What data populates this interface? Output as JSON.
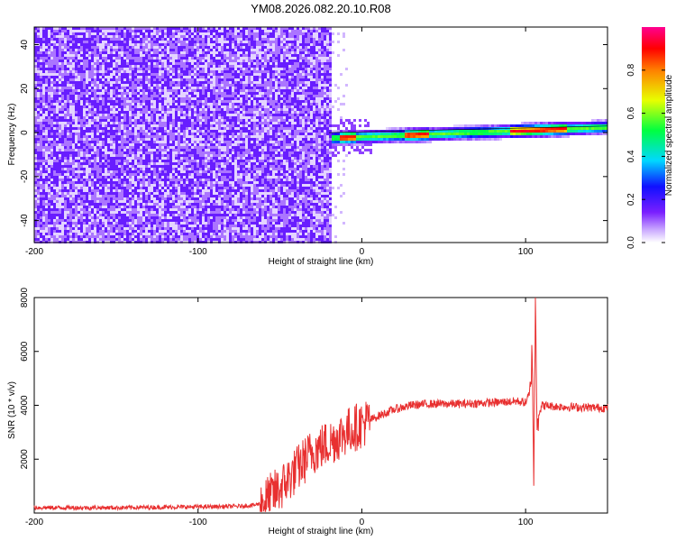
{
  "title": "YM08.2026.082.20.10.R08",
  "chart_data": [
    {
      "type": "heatmap",
      "xlabel": "Height of straight line (km)",
      "ylabel": "Frequency (Hz)",
      "xlim": [
        -200,
        150
      ],
      "ylim": [
        -50,
        48
      ],
      "x_ticks": [
        -200,
        -100,
        0,
        100
      ],
      "y_ticks": [
        -40,
        -20,
        0,
        20,
        40
      ],
      "colorbar": {
        "label": "Normalized spectral amplitude",
        "range": [
          0.0,
          1.0
        ],
        "ticks": [
          0.0,
          0.2,
          0.4,
          0.6,
          0.8
        ],
        "colormap": "rainbow (white-violet-blue-cyan-green-yellow-red-magenta)"
      },
      "regions": [
        {
          "x_range": [
            -200,
            -20
          ],
          "description_value": 0.15
        },
        {
          "x_range": [
            -20,
            150
          ],
          "ridge_frequency_start": -2,
          "ridge_frequency_end": 3
        }
      ]
    },
    {
      "type": "line",
      "xlabel": "Height of straight line (km)",
      "ylabel": "SNR (10 * v/v)",
      "xlim": [
        -200,
        150
      ],
      "ylim": [
        0,
        8000
      ],
      "x_ticks": [
        -200,
        -100,
        0,
        100
      ],
      "y_ticks": [
        2000,
        4000,
        6000,
        8000
      ],
      "series": [
        {
          "color": "#e83030",
          "x": [
            -200,
            -150,
            -100,
            -75,
            -65,
            -60,
            -50,
            -40,
            -30,
            -20,
            -10,
            0,
            10,
            20,
            30,
            40,
            60,
            80,
            95,
            100,
            103,
            104,
            105,
            106,
            107,
            110,
            120,
            150
          ],
          "y": [
            200,
            200,
            230,
            250,
            300,
            400,
            900,
            1600,
            2300,
            2600,
            3000,
            3300,
            3600,
            3850,
            4000,
            4050,
            4050,
            4100,
            4150,
            4100,
            4500,
            6200,
            1300,
            7800,
            3500,
            4000,
            3950,
            3900
          ]
        }
      ]
    }
  ]
}
